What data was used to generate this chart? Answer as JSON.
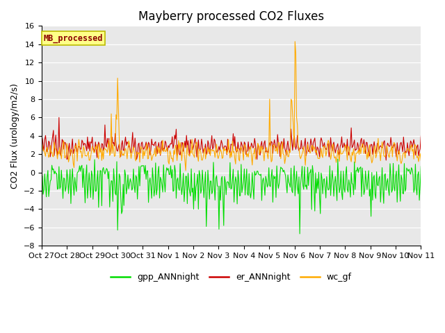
{
  "title": "Mayberry processed CO2 Fluxes",
  "ylabel": "CO2 Flux (urology/m2/s)",
  "ylim": [
    -8,
    16
  ],
  "yticks": [
    -8,
    -6,
    -4,
    -2,
    0,
    2,
    4,
    6,
    8,
    10,
    12,
    14,
    16
  ],
  "background_color": "#e8e8e8",
  "gpp_color": "#00dd00",
  "er_color": "#cc0000",
  "wc_color": "#ffaa00",
  "legend_label": "MB_processed",
  "legend_text_color": "#8b0000",
  "legend_box_facecolor": "#ffff88",
  "legend_box_edgecolor": "#bbbb00",
  "series_labels": [
    "gpp_ANNnight",
    "er_ANNnight",
    "wc_gf"
  ],
  "n_points": 480,
  "xtick_labels": [
    "Oct 27",
    "Oct 28",
    "Oct 29",
    "Oct 30",
    "Oct 31",
    "Nov 1",
    "Nov 2",
    "Nov 3",
    "Nov 4",
    "Nov 5",
    "Nov 6",
    "Nov 7",
    "Nov 8",
    "Nov 9",
    "Nov 10",
    "Nov 11"
  ],
  "title_fontsize": 12,
  "axis_label_fontsize": 9,
  "tick_fontsize": 8,
  "linewidth": 0.8,
  "fig_width": 6.4,
  "fig_height": 4.8,
  "dpi": 100
}
